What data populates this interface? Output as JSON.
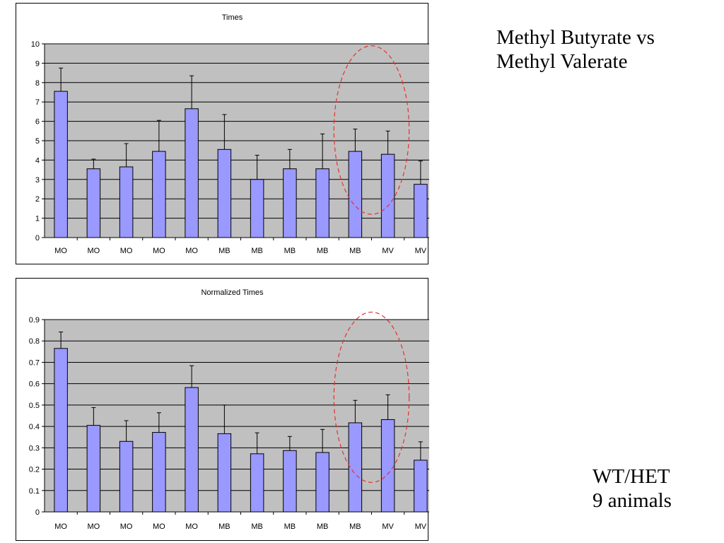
{
  "headline": {
    "line1": "Methyl Butyrate vs",
    "line2": "Methyl Valerate"
  },
  "footnote": {
    "line1": "WT/HET",
    "line2": "9 animals"
  },
  "colors": {
    "bar": "#9999ff",
    "plot_bg": "#c0c0c0",
    "highlight_ellipse": "#e8302c"
  },
  "chart_data": [
    {
      "type": "bar",
      "title": "Times",
      "categories": [
        "MO",
        "MO",
        "MO",
        "MO",
        "MO",
        "MB",
        "MB",
        "MB",
        "MB",
        "MB",
        "MV",
        "MV"
      ],
      "values": [
        7.55,
        3.55,
        3.65,
        4.45,
        6.65,
        4.55,
        3.0,
        3.55,
        3.55,
        4.45,
        4.3,
        2.75
      ],
      "error_upper": [
        1.2,
        0.5,
        1.2,
        1.6,
        1.7,
        1.8,
        1.25,
        1.0,
        1.8,
        1.15,
        1.2,
        1.2
      ],
      "ylim": [
        0,
        10
      ],
      "yticks": [
        "0",
        "1",
        "2",
        "3",
        "4",
        "5",
        "6",
        "7",
        "8",
        "9",
        "10"
      ],
      "grid": true,
      "legend": "none",
      "highlighted_bars": [
        9,
        10
      ]
    },
    {
      "type": "bar",
      "title": "Normalized Times",
      "categories": [
        "MO",
        "MO",
        "MO",
        "MO",
        "MO",
        "MB",
        "MB",
        "MB",
        "MB",
        "MB",
        "MV",
        "MV"
      ],
      "values": [
        0.765,
        0.405,
        0.33,
        0.372,
        0.582,
        0.366,
        0.272,
        0.287,
        0.278,
        0.417,
        0.432,
        0.242
      ],
      "error_upper": [
        0.077,
        0.083,
        0.097,
        0.092,
        0.102,
        0.134,
        0.098,
        0.066,
        0.108,
        0.105,
        0.116,
        0.086
      ],
      "ylim": [
        0,
        0.9
      ],
      "yticks": [
        "0",
        "0.1",
        "0.2",
        "0.3",
        "0.4",
        "0.5",
        "0.6",
        "0.7",
        "0.8",
        "0.9"
      ],
      "grid": true,
      "legend": "none",
      "highlighted_bars": [
        9,
        10
      ]
    }
  ]
}
